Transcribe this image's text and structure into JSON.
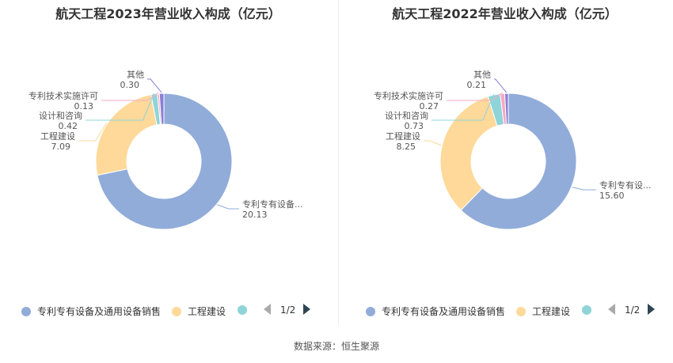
{
  "source_text": "数据来源：恒生聚源",
  "colors": [
    "#91acd9",
    "#fed999",
    "#8fd4d8",
    "#f5a9c4",
    "#8a7fd6"
  ],
  "chart_data": [
    {
      "type": "pie",
      "variant": "donut",
      "title": "航天工程2023年营业收入构成（亿元）",
      "series": [
        {
          "name": "专利专有设备及通用设备销售",
          "label": "专利专有设备...",
          "value": 20.13,
          "value_label": "20.13"
        },
        {
          "name": "工程建设",
          "label": "工程建设",
          "value": 7.09,
          "value_label": "7.09"
        },
        {
          "name": "设计和咨询",
          "label": "设计和咨询",
          "value": 0.42,
          "value_label": "0.42"
        },
        {
          "name": "专利技术实施许可",
          "label": "专利技术实施许可",
          "value": 0.13,
          "value_label": "0.13"
        },
        {
          "name": "其他",
          "label": "其他",
          "value": 0.3,
          "value_label": "0.30"
        }
      ],
      "legend": {
        "position": "bottom",
        "visible_items": [
          "专利专有设备及通用设备销售",
          "工程建设",
          ""
        ],
        "page": "1/2"
      }
    },
    {
      "type": "pie",
      "variant": "donut",
      "title": "航天工程2022年营业收入构成（亿元）",
      "series": [
        {
          "name": "专利专有设备及通用设备销售",
          "label": "专利专有设...",
          "value": 15.6,
          "value_label": "15.60"
        },
        {
          "name": "工程建设",
          "label": "工程建设",
          "value": 8.25,
          "value_label": "8.25"
        },
        {
          "name": "设计和咨询",
          "label": "设计和咨询",
          "value": 0.73,
          "value_label": "0.73"
        },
        {
          "name": "专利技术实施许可",
          "label": "专利技术实施许可",
          "value": 0.27,
          "value_label": "0.27"
        },
        {
          "name": "其他",
          "label": "其他",
          "value": 0.21,
          "value_label": "0.21"
        }
      ],
      "legend": {
        "position": "bottom",
        "visible_items": [
          "专利专有设备及通用设备销售",
          "工程建设",
          ""
        ],
        "page": "1/2"
      }
    }
  ]
}
